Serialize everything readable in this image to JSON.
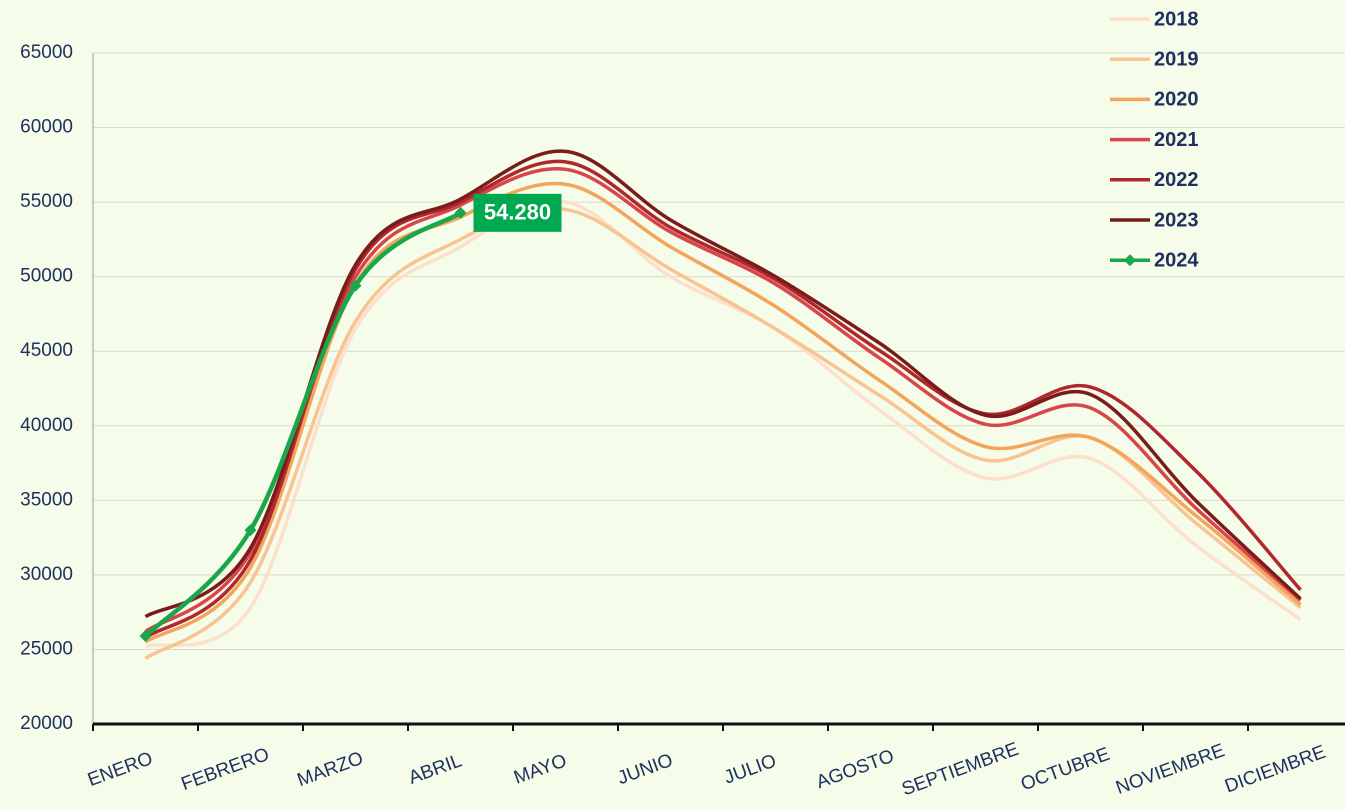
{
  "chart_data": {
    "type": "line",
    "categories": [
      "ENERO",
      "FEBRERO",
      "MARZO",
      "ABRIL",
      "MAYO",
      "JUNIO",
      "JULIO",
      "AGOSTO",
      "SEPTIEMBRE",
      "OCTUBRE",
      "NOVIEMBRE",
      "DICIEMBRE"
    ],
    "series": [
      {
        "name": "2018",
        "color": "#fde0cc",
        "values": [
          25200,
          27800,
          46500,
          52000,
          55000,
          50000,
          46500,
          41000,
          36500,
          37800,
          32000,
          27000
        ]
      },
      {
        "name": "2019",
        "color": "#f9c392",
        "values": [
          24400,
          29500,
          47000,
          52500,
          54500,
          50500,
          46500,
          42000,
          37700,
          39200,
          33500,
          27800
        ]
      },
      {
        "name": "2020",
        "color": "#f4a55c",
        "values": [
          25500,
          30500,
          49500,
          54000,
          56200,
          52000,
          48000,
          43000,
          38600,
          39200,
          34000,
          28000
        ]
      },
      {
        "name": "2021",
        "color": "#d8454a",
        "values": [
          26200,
          31500,
          50000,
          54800,
          57200,
          53000,
          49500,
          44500,
          40100,
          41200,
          34500,
          28300
        ]
      },
      {
        "name": "2022",
        "color": "#b0282e",
        "values": [
          25800,
          31000,
          50500,
          55000,
          57700,
          53300,
          49800,
          45000,
          40800,
          42600,
          37000,
          29000
        ]
      },
      {
        "name": "2023",
        "color": "#7a1c1c",
        "values": [
          27200,
          31800,
          50800,
          55200,
          58400,
          53800,
          50000,
          45500,
          40700,
          42100,
          35000,
          28400
        ]
      },
      {
        "name": "2024",
        "color": "#1aa64a",
        "values": [
          25900,
          33000,
          49400,
          54280,
          null,
          null,
          null,
          null,
          null,
          null,
          null,
          null
        ],
        "value_labels": [
          null,
          null,
          null,
          "54.280",
          null,
          null,
          null,
          null,
          null,
          null,
          null,
          null
        ]
      }
    ],
    "ylim": [
      20000,
      65000
    ],
    "yticks": [
      20000,
      25000,
      30000,
      35000,
      40000,
      45000,
      50000,
      55000,
      60000,
      65000
    ],
    "grid": true,
    "legend": "top-right"
  }
}
